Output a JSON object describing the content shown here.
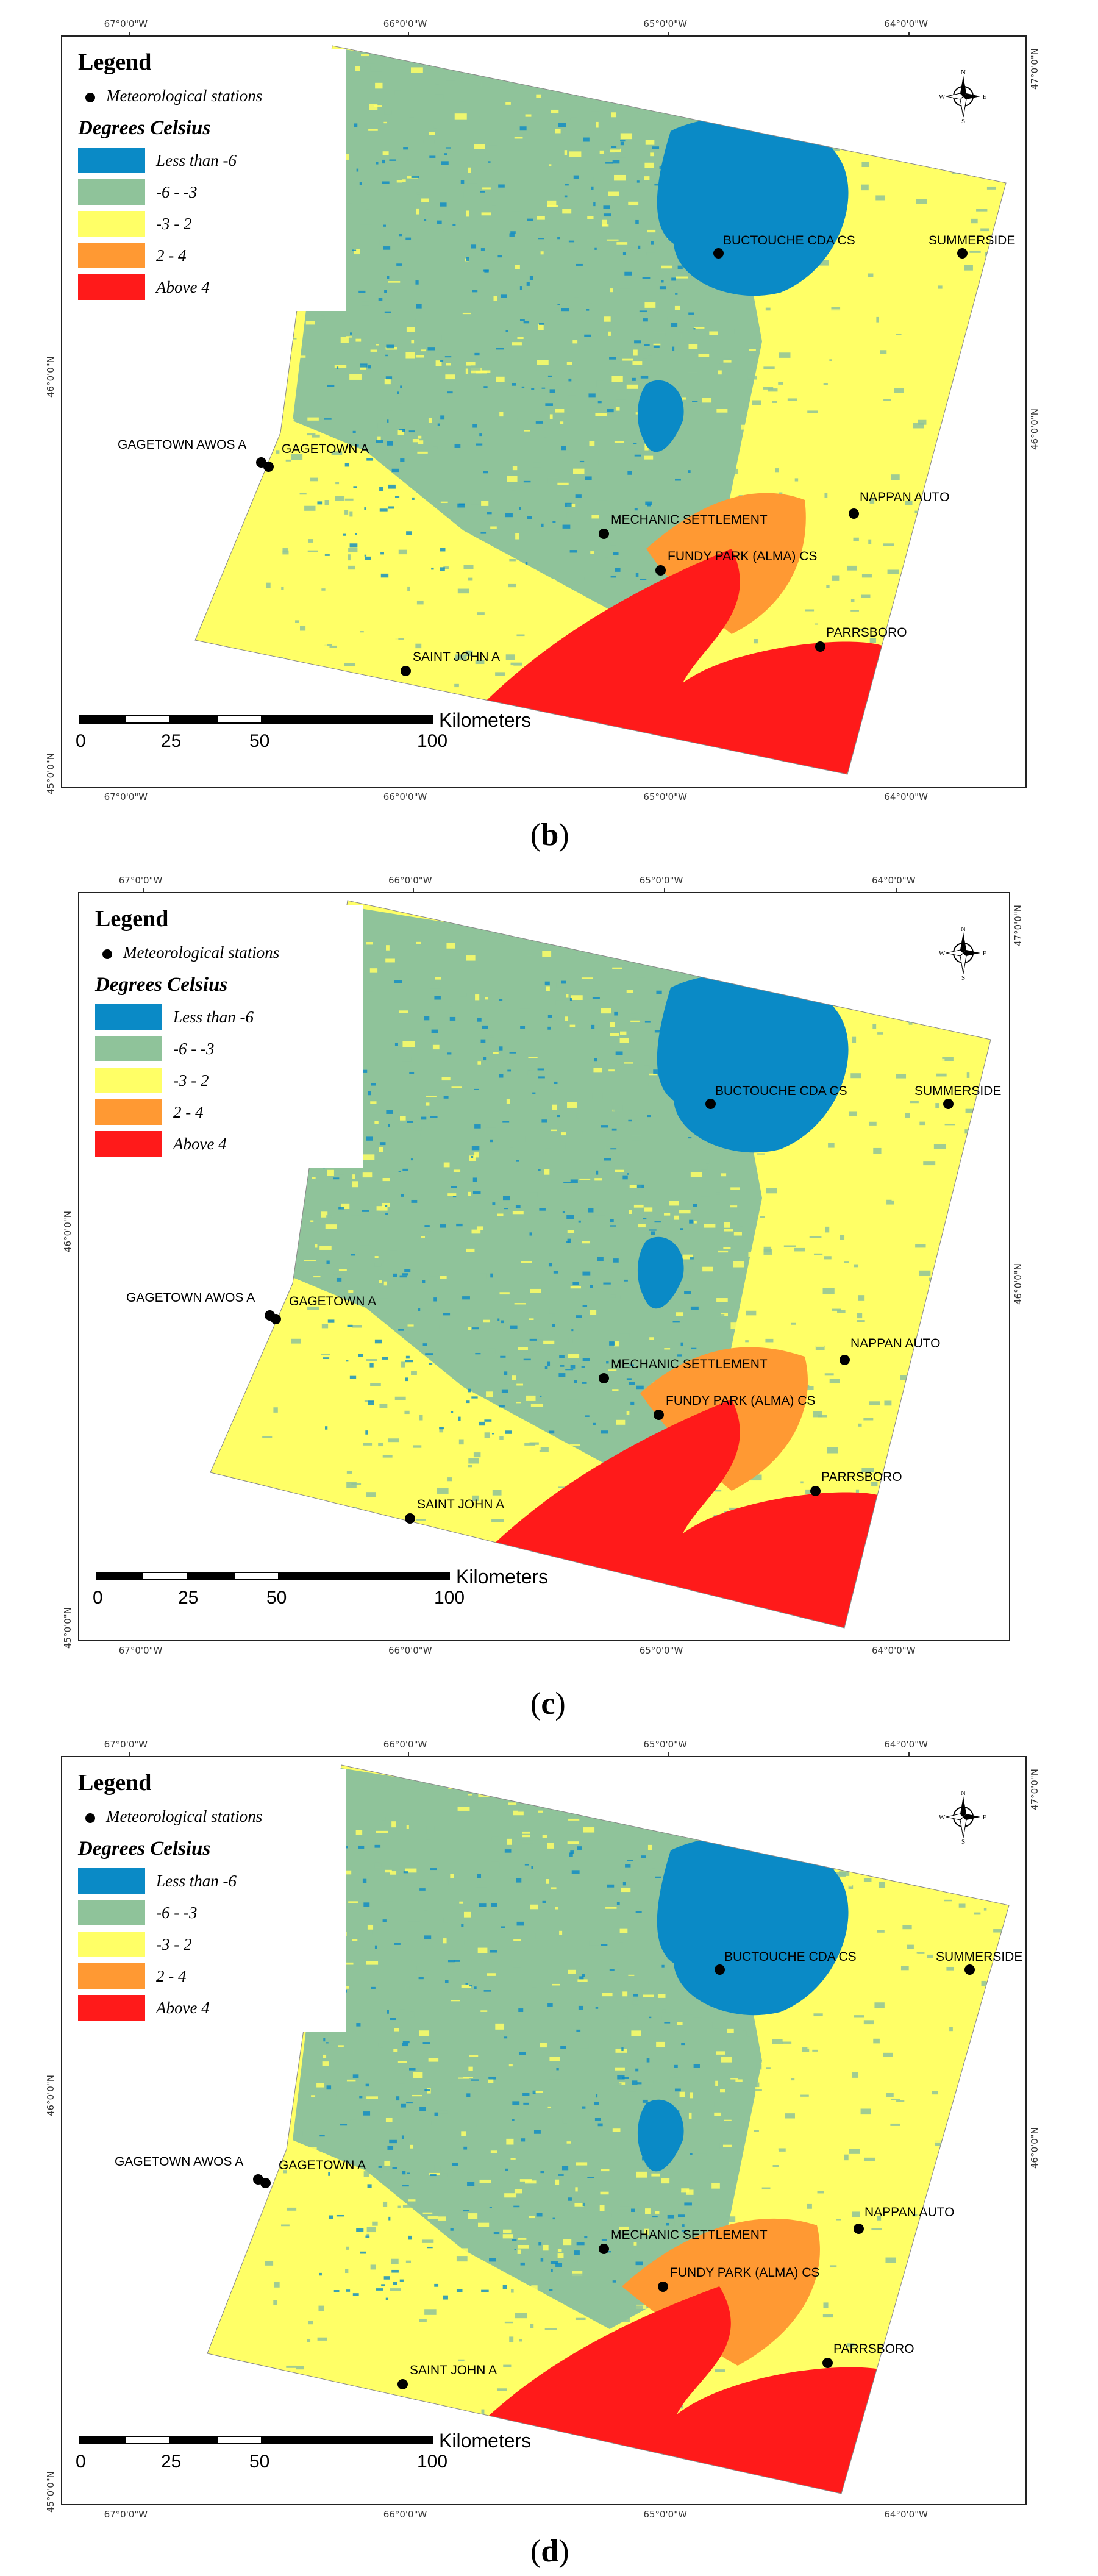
{
  "panels": [
    {
      "caption_open": "(",
      "caption_letter": "b",
      "caption_close": ")",
      "legend": {
        "title": "Legend",
        "stations_label": "Meteorological stations",
        "degrees_title": "Degrees Celsius",
        "classes": [
          {
            "label": "Less than -6",
            "color": "#0a8ac6"
          },
          {
            "label": "-6 - -3",
            "color": "#8fc39a"
          },
          {
            "label": "-3 - 2",
            "color": "#ffff66"
          },
          {
            "label": "2 - 4",
            "color": "#ff9933"
          },
          {
            "label": "Above 4",
            "color": "#ff1a1a"
          }
        ]
      },
      "lon_top": [
        "67°0'0\"W",
        "66°0'0\"W",
        "65°0'0\"W",
        "64°0'0\"W"
      ],
      "lon_bottom": [
        "67°0'0\"W",
        "66°0'0\"W",
        "65°0'0\"W",
        "64°0'0\"W"
      ],
      "lat_left": [
        "46°0'0\"N",
        "45°0'0\"N"
      ],
      "lat_right": [
        "47°0'0\"N",
        "46°0'0\"N"
      ],
      "stations": [
        {
          "name": "BUCTOUCHE CDA CS"
        },
        {
          "name": "SUMMERSIDE"
        },
        {
          "name": "GAGETOWN AWOS A"
        },
        {
          "name": "GAGETOWN A"
        },
        {
          "name": "NAPPAN AUTO"
        },
        {
          "name": "MECHANIC SETTLEMENT"
        },
        {
          "name": "FUNDY PARK (ALMA) CS"
        },
        {
          "name": "PARRSBORO"
        },
        {
          "name": "SAINT JOHN A"
        }
      ],
      "scale": {
        "ticks": [
          "0",
          "25",
          "50",
          "100"
        ],
        "unit": "Kilometers"
      },
      "compass": {
        "n": "N",
        "s": "S",
        "e": "E",
        "w": "W"
      }
    },
    {
      "caption_open": "(",
      "caption_letter": "c",
      "caption_close": ")",
      "legend": {
        "title": "Legend",
        "stations_label": "Meteorological stations",
        "degrees_title": "Degrees Celsius",
        "classes": [
          {
            "label": "Less than -6",
            "color": "#0a8ac6"
          },
          {
            "label": "-6 - -3",
            "color": "#8fc39a"
          },
          {
            "label": "-3 - 2",
            "color": "#ffff66"
          },
          {
            "label": "2 - 4",
            "color": "#ff9933"
          },
          {
            "label": "Above 4",
            "color": "#ff1a1a"
          }
        ]
      },
      "lon_top": [
        "67°0'0\"W",
        "66°0'0\"W",
        "65°0'0\"W",
        "64°0'0\"W"
      ],
      "lon_bottom": [
        "67°0'0\"W",
        "66°0'0\"W",
        "65°0'0\"W",
        "64°0'0\"W"
      ],
      "lat_left": [
        "46°0'0\"N",
        "45°0'0\"N"
      ],
      "lat_right": [
        "47°0'0\"N",
        "46°0'0\"N"
      ],
      "stations": [
        {
          "name": "BUCTOUCHE CDA CS"
        },
        {
          "name": "SUMMERSIDE"
        },
        {
          "name": "GAGETOWN AWOS A"
        },
        {
          "name": "GAGETOWN A"
        },
        {
          "name": "NAPPAN AUTO"
        },
        {
          "name": "MECHANIC SETTLEMENT"
        },
        {
          "name": "FUNDY PARK (ALMA) CS"
        },
        {
          "name": "PARRSBORO"
        },
        {
          "name": "SAINT JOHN A"
        }
      ],
      "scale": {
        "ticks": [
          "0",
          "25",
          "50",
          "100"
        ],
        "unit": "Kilometers"
      },
      "compass": {
        "n": "N",
        "s": "S",
        "e": "E",
        "w": "W"
      }
    },
    {
      "caption_open": "(",
      "caption_letter": "d",
      "caption_close": ")",
      "legend": {
        "title": "Legend",
        "stations_label": "Meteorological stations",
        "degrees_title": "Degrees Celsius",
        "classes": [
          {
            "label": "Less than -6",
            "color": "#0a8ac6"
          },
          {
            "label": "-6 - -3",
            "color": "#8fc39a"
          },
          {
            "label": "-3 - 2",
            "color": "#ffff66"
          },
          {
            "label": "2 - 4",
            "color": "#ff9933"
          },
          {
            "label": "Above 4",
            "color": "#ff1a1a"
          }
        ]
      },
      "lon_top": [
        "67°0'0\"W",
        "66°0'0\"W",
        "65°0'0\"W",
        "64°0'0\"W"
      ],
      "lon_bottom": [
        "67°0'0\"W",
        "66°0'0\"W",
        "65°0'0\"W",
        "64°0'0\"W"
      ],
      "lat_left": [
        "46°0'0\"N",
        "45°0'0\"N"
      ],
      "lat_right": [
        "47°0'0\"N",
        "46°0'0\"N"
      ],
      "stations": [
        {
          "name": "BUCTOUCHE CDA CS"
        },
        {
          "name": "SUMMERSIDE"
        },
        {
          "name": "GAGETOWN AWOS A"
        },
        {
          "name": "GAGETOWN A"
        },
        {
          "name": "NAPPAN AUTO"
        },
        {
          "name": "MECHANIC SETTLEMENT"
        },
        {
          "name": "FUNDY PARK (ALMA) CS"
        },
        {
          "name": "PARRSBORO"
        },
        {
          "name": "SAINT JOHN A"
        }
      ],
      "scale": {
        "ticks": [
          "0",
          "25",
          "50",
          "100"
        ],
        "unit": "Kilometers"
      },
      "compass": {
        "n": "N",
        "s": "S",
        "e": "E",
        "w": "W"
      }
    }
  ]
}
